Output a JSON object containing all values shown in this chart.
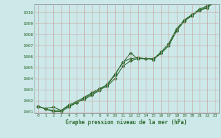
{
  "x": [
    0,
    1,
    2,
    3,
    4,
    5,
    6,
    7,
    8,
    9,
    10,
    11,
    12,
    13,
    14,
    15,
    16,
    17,
    18,
    19,
    20,
    21,
    22,
    23
  ],
  "series1": [
    1001.4,
    1001.3,
    1001.4,
    1001.1,
    1001.5,
    1001.8,
    1002.1,
    1002.5,
    1002.9,
    1003.5,
    1004.4,
    1005.4,
    1006.3,
    1005.8,
    1005.8,
    1005.8,
    1006.3,
    1007.0,
    1008.4,
    1009.3,
    1009.7,
    1010.2,
    1010.5,
    1011.0
  ],
  "series2": [
    1001.5,
    1001.2,
    1001.1,
    1001.1,
    1001.6,
    1001.9,
    1002.3,
    1002.7,
    1003.1,
    1003.4,
    1004.3,
    1005.5,
    1005.8,
    1005.9,
    1005.8,
    1005.8,
    1006.4,
    1007.2,
    1008.5,
    1009.3,
    1009.8,
    1010.3,
    1010.6,
    1011.1
  ],
  "series3": [
    1001.5,
    1001.2,
    1001.0,
    1001.0,
    1001.4,
    1001.8,
    1002.2,
    1002.6,
    1003.0,
    1003.3,
    1004.0,
    1005.1,
    1005.6,
    1005.8,
    1005.8,
    1005.7,
    1006.3,
    1007.0,
    1008.3,
    1009.2,
    1009.7,
    1010.2,
    1010.4,
    1011.0
  ],
  "line_color": "#2d6a2d",
  "bg_color": "#cce8e8",
  "grid_color": "#c8a8a8",
  "xlabel": "Graphe pression niveau de la mer (hPa)",
  "ylim_min": 1000.85,
  "ylim_max": 1010.75,
  "yticks": [
    1001,
    1002,
    1003,
    1004,
    1005,
    1006,
    1007,
    1008,
    1009,
    1010
  ],
  "xticks": [
    0,
    1,
    2,
    3,
    4,
    5,
    6,
    7,
    8,
    9,
    10,
    11,
    12,
    13,
    14,
    15,
    16,
    17,
    18,
    19,
    20,
    21,
    22,
    23
  ],
  "marker": "D",
  "markersize": 2.2,
  "linewidth": 0.8
}
